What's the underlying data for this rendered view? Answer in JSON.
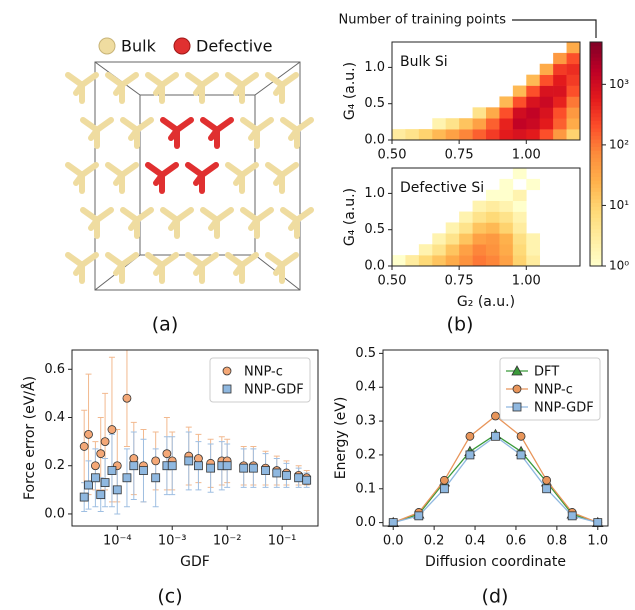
{
  "structure": {
    "legend": [
      "Bulk",
      "Defective"
    ],
    "legend_colors": [
      "#efdca0",
      "#e03030"
    ],
    "panel_label": "(a)"
  },
  "chart_data": [
    {
      "type": "heatmap",
      "title": "Bulk Si",
      "ylabel": "G₄ (a.u.)",
      "xbins": [
        0.5,
        0.55,
        0.6,
        0.65,
        0.7,
        0.75,
        0.8,
        0.85,
        0.9,
        0.95,
        1.0,
        1.05,
        1.1,
        1.15,
        1.2
      ],
      "ybins": [
        0,
        0.15,
        0.3,
        0.45,
        0.6,
        0.75,
        0.9,
        1.05,
        1.2,
        1.35
      ],
      "values": [
        [
          3,
          5,
          10,
          20,
          40,
          80,
          150,
          300,
          600,
          800,
          600,
          200,
          50,
          10
        ],
        [
          null,
          null,
          null,
          2,
          5,
          15,
          40,
          150,
          500,
          1500,
          1200,
          600,
          150,
          30
        ],
        [
          null,
          null,
          null,
          null,
          null,
          null,
          5,
          30,
          200,
          1000,
          1500,
          800,
          200,
          50
        ],
        [
          null,
          null,
          null,
          null,
          null,
          null,
          null,
          null,
          20,
          200,
          800,
          1200,
          500,
          100
        ],
        [
          null,
          null,
          null,
          null,
          null,
          null,
          null,
          null,
          null,
          20,
          200,
          800,
          800,
          200
        ],
        [
          null,
          null,
          null,
          null,
          null,
          null,
          null,
          null,
          null,
          null,
          20,
          200,
          600,
          300
        ],
        [
          null,
          null,
          null,
          null,
          null,
          null,
          null,
          null,
          null,
          null,
          null,
          30,
          300,
          400
        ],
        [
          null,
          null,
          null,
          null,
          null,
          null,
          null,
          null,
          null,
          null,
          null,
          null,
          50,
          200
        ],
        [
          null,
          null,
          null,
          null,
          null,
          null,
          null,
          null,
          null,
          null,
          null,
          null,
          null,
          30
        ]
      ],
      "xlim": [
        0.5,
        1.2
      ],
      "ylim": [
        0,
        1.35
      ],
      "xticks": [
        {
          "value": 0.5,
          "label": "0.50"
        },
        0.75,
        {
          "value": 1,
          "label": "1.00"
        }
      ],
      "yticks": [
        {
          "value": 0,
          "label": "0.0"
        },
        0.5,
        {
          "value": 1,
          "label": "1.0"
        }
      ],
      "colorbar": {
        "label": "Number of training points",
        "colormap": "YlOrRd",
        "log": true,
        "lim": [
          1,
          5000
        ],
        "ticks": [
          {
            "value": 1,
            "label": "10⁰"
          },
          {
            "value": 10,
            "label": "10¹"
          },
          {
            "value": 100,
            "label": "10²"
          },
          {
            "value": 1000,
            "label": "10³"
          }
        ]
      }
    },
    {
      "type": "heatmap",
      "title": "Defective Si",
      "ylabel": "G₄ (a.u.)",
      "xlabel": "G₂ (a.u.)",
      "panel_label": "(b)",
      "xbins": [
        0.5,
        0.55,
        0.6,
        0.65,
        0.7,
        0.75,
        0.8,
        0.85,
        0.9,
        0.95,
        1.0,
        1.05,
        1.1,
        1.15,
        1.2
      ],
      "ybins": [
        0,
        0.15,
        0.3,
        0.45,
        0.6,
        0.75,
        0.9,
        1.05,
        1.2,
        1.35
      ],
      "values": [
        [
          1,
          3,
          8,
          15,
          30,
          60,
          100,
          80,
          40,
          10,
          3,
          null,
          null,
          null
        ],
        [
          null,
          null,
          2,
          5,
          15,
          40,
          80,
          60,
          30,
          8,
          2,
          null,
          null,
          null
        ],
        [
          null,
          null,
          null,
          2,
          5,
          15,
          40,
          50,
          25,
          6,
          2,
          null,
          null,
          null
        ],
        [
          null,
          null,
          null,
          null,
          2,
          5,
          15,
          20,
          10,
          3,
          null,
          null,
          null,
          null
        ],
        [
          null,
          null,
          null,
          null,
          null,
          2,
          5,
          8,
          5,
          2,
          null,
          null,
          null,
          null
        ],
        [
          null,
          null,
          null,
          null,
          null,
          null,
          2,
          3,
          2,
          1,
          null,
          null,
          null,
          null
        ],
        [
          null,
          null,
          null,
          null,
          null,
          null,
          null,
          1,
          1,
          2,
          null,
          null,
          null,
          null
        ],
        [
          null,
          null,
          null,
          null,
          null,
          null,
          null,
          null,
          1,
          null,
          1,
          null,
          null,
          null
        ],
        [
          null,
          null,
          null,
          null,
          null,
          null,
          null,
          null,
          null,
          1,
          null,
          null,
          null,
          null
        ]
      ],
      "xlim": [
        0.5,
        1.2
      ],
      "ylim": [
        0,
        1.35
      ],
      "xticks": [
        {
          "value": 0.5,
          "label": "0.50"
        },
        0.75,
        {
          "value": 1,
          "label": "1.00"
        }
      ],
      "yticks": [
        {
          "value": 0,
          "label": "0.0"
        },
        0.5,
        {
          "value": 1,
          "label": "1.0"
        }
      ]
    },
    {
      "type": "scatter",
      "xlabel": "GDF",
      "ylabel": "Force error (eV/Å)",
      "panel_label": "(c)",
      "xlog": true,
      "legend": "upper right",
      "xlim": [
        1.5e-05,
        0.45
      ],
      "ylim": [
        -0.05,
        0.68
      ],
      "xticks": [
        {
          "value": 0.0001,
          "label": "10⁻⁴"
        },
        {
          "value": 0.001,
          "label": "10⁻³"
        },
        {
          "value": 0.01,
          "label": "10⁻²"
        },
        {
          "value": 0.1,
          "label": "10⁻¹"
        }
      ],
      "yticks": [
        {
          "value": 0,
          "label": "0.0"
        },
        0.2,
        0.4,
        0.6
      ],
      "series": [
        {
          "name": "NNP-c",
          "color": "#f4a877",
          "error_color": "#f2b98f",
          "marker": "circle",
          "x": [
            2.5e-05,
            3e-05,
            4e-05,
            5e-05,
            6e-05,
            8e-05,
            0.0001,
            0.00015,
            0.0002,
            0.0003,
            0.0005,
            0.0008,
            0.001,
            0.002,
            0.003,
            0.005,
            0.008,
            0.01,
            0.02,
            0.03,
            0.05,
            0.08,
            0.12,
            0.2,
            0.28
          ],
          "values": [
            0.28,
            0.33,
            0.2,
            0.25,
            0.3,
            0.35,
            0.2,
            0.48,
            0.23,
            0.2,
            0.22,
            0.25,
            0.22,
            0.24,
            0.23,
            0.21,
            0.22,
            0.22,
            0.2,
            0.2,
            0.19,
            0.18,
            0.17,
            0.16,
            0.15
          ],
          "errors": [
            0.15,
            0.25,
            0.1,
            0.15,
            0.2,
            0.3,
            0.15,
            0.2,
            0.15,
            0.15,
            0.12,
            0.15,
            0.12,
            0.12,
            0.1,
            0.1,
            0.1,
            0.09,
            0.08,
            0.08,
            0.07,
            0.06,
            0.05,
            0.04,
            0.03
          ]
        },
        {
          "name": "NNP-GDF",
          "color": "#8fb8e0",
          "error_color": "#9fbfe2",
          "marker": "square",
          "x": [
            2.5e-05,
            3e-05,
            4e-05,
            5e-05,
            6e-05,
            8e-05,
            0.0001,
            0.00015,
            0.0002,
            0.0003,
            0.0005,
            0.0008,
            0.001,
            0.002,
            0.003,
            0.005,
            0.008,
            0.01,
            0.02,
            0.03,
            0.05,
            0.08,
            0.12,
            0.2,
            0.28
          ],
          "values": [
            0.07,
            0.12,
            0.15,
            0.08,
            0.13,
            0.18,
            0.1,
            0.15,
            0.2,
            0.18,
            0.15,
            0.2,
            0.2,
            0.22,
            0.2,
            0.19,
            0.2,
            0.2,
            0.19,
            0.19,
            0.18,
            0.17,
            0.16,
            0.15,
            0.14
          ],
          "errors": [
            0.06,
            0.1,
            0.12,
            0.07,
            0.1,
            0.15,
            0.1,
            0.12,
            0.14,
            0.13,
            0.12,
            0.12,
            0.12,
            0.12,
            0.1,
            0.1,
            0.1,
            0.09,
            0.08,
            0.08,
            0.07,
            0.06,
            0.05,
            0.04,
            0.03
          ]
        }
      ]
    },
    {
      "type": "line",
      "xlabel": "Diffusion coordinate",
      "ylabel": "Energy (eV)",
      "panel_label": "(d)",
      "legend": "upper right",
      "xlim": [
        -0.05,
        1.05
      ],
      "ylim": [
        -0.01,
        0.51
      ],
      "xticks": [
        {
          "value": 0,
          "label": "0.0"
        },
        0.2,
        0.4,
        0.6,
        0.8,
        {
          "value": 1,
          "label": "1.0"
        }
      ],
      "yticks": [
        {
          "value": 0,
          "label": "0.0"
        },
        0.1,
        0.2,
        0.3,
        0.4,
        0.5
      ],
      "x": [
        0,
        0.125,
        0.25,
        0.375,
        0.5,
        0.625,
        0.75,
        0.875,
        1
      ],
      "series": [
        {
          "name": "DFT",
          "color": "#3a9a3a",
          "marker": "triangle",
          "values": [
            0,
            0.025,
            0.12,
            0.21,
            0.26,
            0.21,
            0.12,
            0.025,
            0
          ]
        },
        {
          "name": "NNP-c",
          "color": "#e8955a",
          "marker": "circle",
          "values": [
            0,
            0.03,
            0.125,
            0.255,
            0.315,
            0.255,
            0.125,
            0.03,
            0
          ]
        },
        {
          "name": "NNP-GDF",
          "color": "#8fb8e0",
          "marker": "square",
          "values": [
            0,
            0.02,
            0.1,
            0.2,
            0.255,
            0.2,
            0.1,
            0.02,
            0
          ]
        }
      ]
    }
  ]
}
